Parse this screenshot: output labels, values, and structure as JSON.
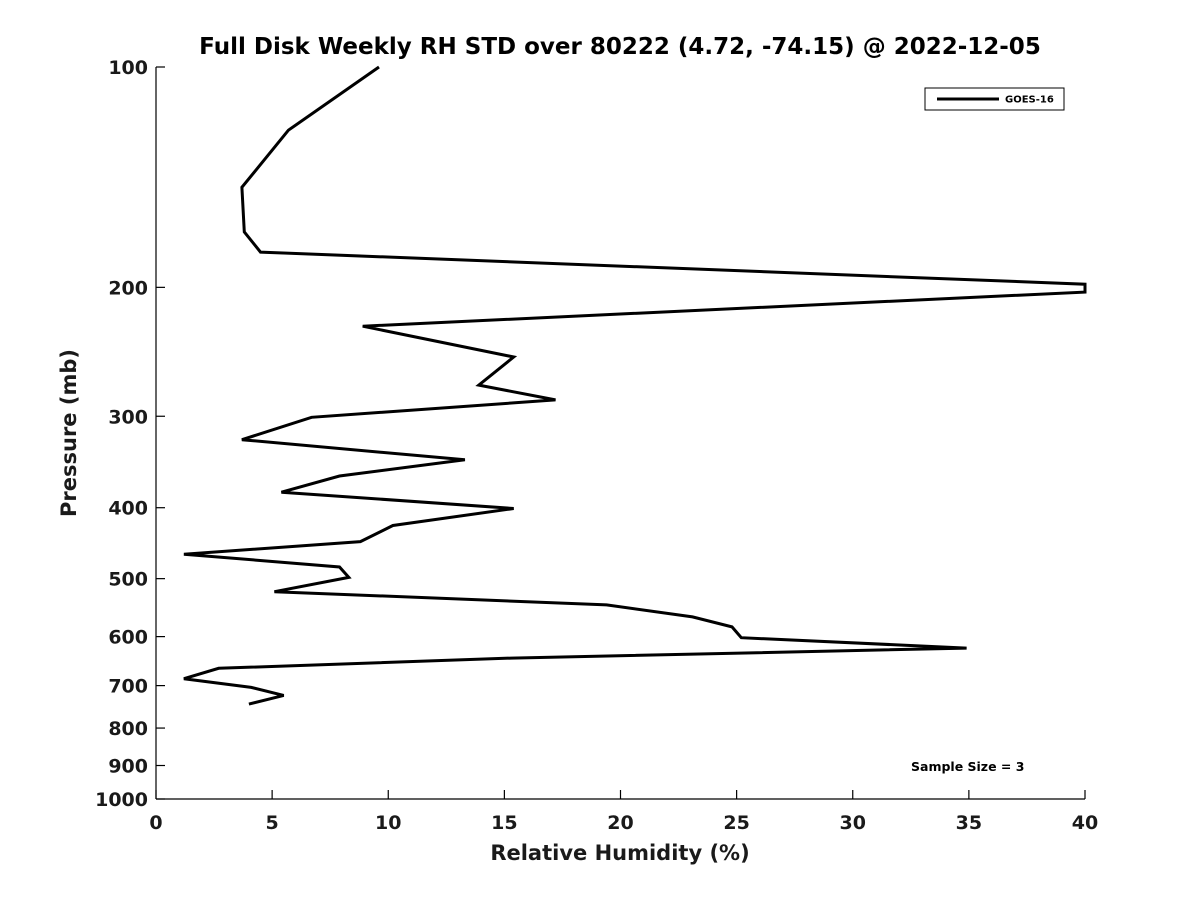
{
  "chart_data": {
    "type": "line",
    "title": "Full Disk Weekly RH STD over 80222 (4.72, -74.15) @ 2022-12-05",
    "xlabel": "Relative Humidity (%)",
    "ylabel": "Pressure (mb)",
    "xlim": [
      0,
      40
    ],
    "ylim": [
      100,
      1000
    ],
    "y_scale": "log",
    "y_inverted": true,
    "x_ticks": [
      0,
      5,
      10,
      15,
      20,
      25,
      30,
      35,
      40
    ],
    "x_tick_labels": [
      "0",
      "5",
      "10",
      "15",
      "20",
      "25",
      "30",
      "35",
      "40"
    ],
    "y_ticks": [
      100,
      200,
      300,
      400,
      500,
      600,
      700,
      800,
      900,
      1000
    ],
    "y_tick_labels": [
      "100",
      "200",
      "300",
      "400",
      "500",
      "600",
      "700",
      "800",
      "900",
      "1000"
    ],
    "grid": false,
    "legend_position": "top-right",
    "annotation": "Sample Size = 3",
    "series": [
      {
        "name": "GOES-16",
        "color": "#000000",
        "points": [
          [
            9.6,
            100
          ],
          [
            5.7,
            122
          ],
          [
            3.7,
            146
          ],
          [
            3.8,
            168
          ],
          [
            4.5,
            179
          ],
          [
            40.0,
            198
          ],
          [
            40.0,
            203
          ],
          [
            8.9,
            226
          ],
          [
            15.4,
            249
          ],
          [
            13.9,
            272
          ],
          [
            17.2,
            285
          ],
          [
            6.7,
            301
          ],
          [
            3.7,
            323
          ],
          [
            13.3,
            344
          ],
          [
            7.9,
            362
          ],
          [
            5.4,
            381
          ],
          [
            15.4,
            401
          ],
          [
            10.2,
            423
          ],
          [
            8.8,
            445
          ],
          [
            1.2,
            463
          ],
          [
            7.9,
            482
          ],
          [
            8.3,
            498
          ],
          [
            5.1,
            521
          ],
          [
            19.4,
            543
          ],
          [
            23.1,
            564
          ],
          [
            24.8,
            582
          ],
          [
            25.2,
            602
          ],
          [
            34.9,
            622
          ],
          [
            15.3,
            642
          ],
          [
            2.7,
            663
          ],
          [
            1.2,
            685
          ],
          [
            4.1,
            704
          ],
          [
            5.5,
            722
          ],
          [
            4.0,
            742
          ]
        ]
      }
    ]
  }
}
